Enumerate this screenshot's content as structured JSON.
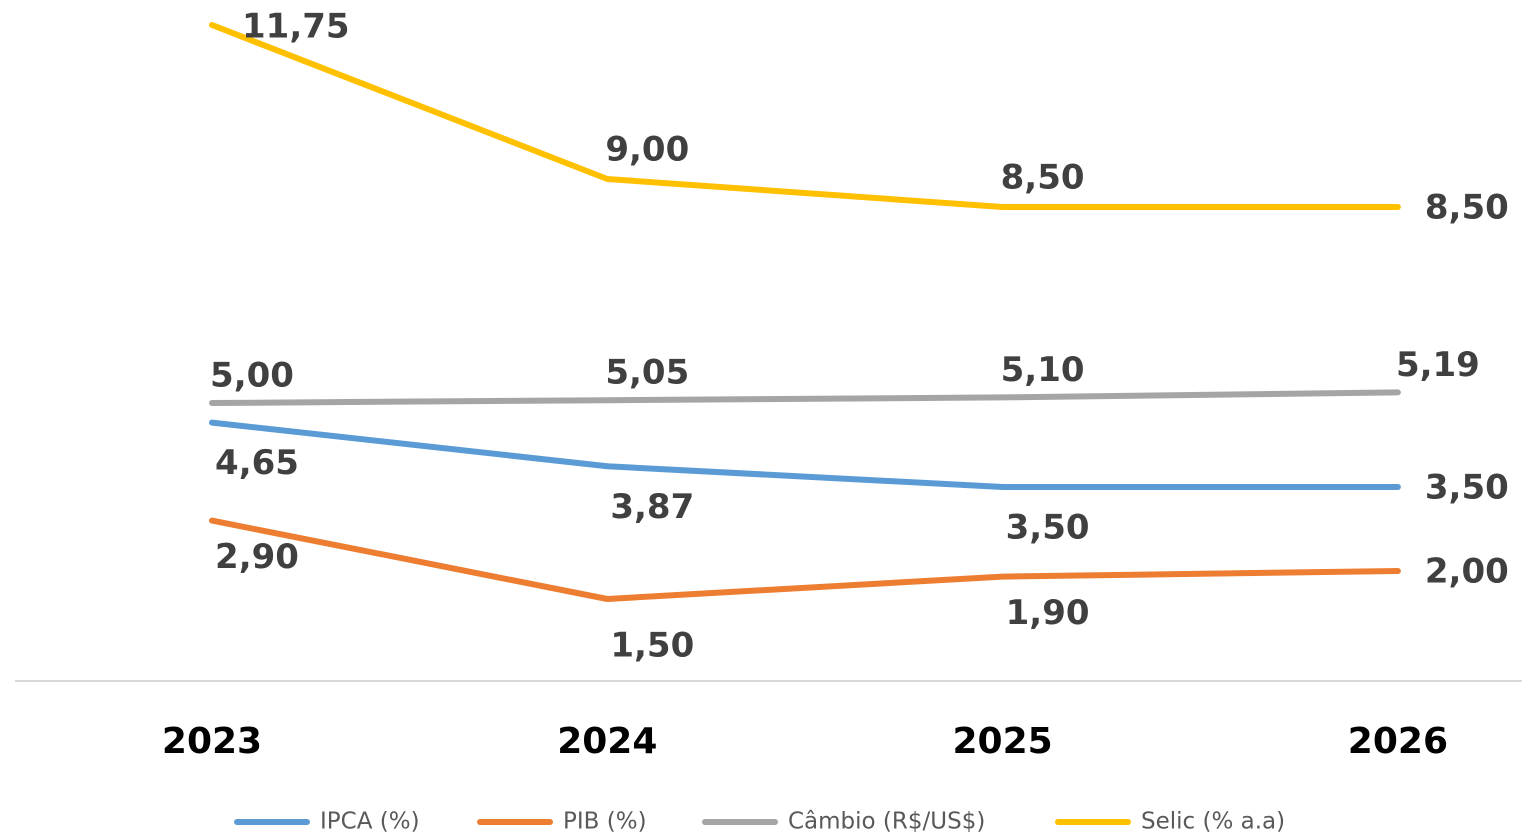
{
  "chart_data": {
    "type": "line",
    "categories": [
      "2023",
      "2024",
      "2025",
      "2026"
    ],
    "series": [
      {
        "name": "IPCA (%)",
        "color": "#5b9bd5",
        "values": [
          4.65,
          3.87,
          3.5,
          3.5
        ],
        "value_labels": [
          "4,65",
          "3,87",
          "3,50",
          "3,50"
        ]
      },
      {
        "name": "PIB (%)",
        "color": "#ed7d31",
        "values": [
          2.9,
          1.5,
          1.9,
          2.0
        ],
        "value_labels": [
          "2,90",
          "1,50",
          "1,90",
          "2,00"
        ]
      },
      {
        "name": "Câmbio (R$/US$)",
        "color": "#a5a5a5",
        "values": [
          5.0,
          5.05,
          5.1,
          5.19
        ],
        "value_labels": [
          "5,00",
          "5,05",
          "5,10",
          "5,19"
        ]
      },
      {
        "name": "Selic (% a.a)",
        "color": "#ffc000",
        "values": [
          11.75,
          9.0,
          8.5,
          8.5
        ],
        "value_labels": [
          "11,75",
          "9,00",
          "8,50",
          "8,50"
        ]
      }
    ],
    "ylim": [
      0,
      12
    ]
  }
}
